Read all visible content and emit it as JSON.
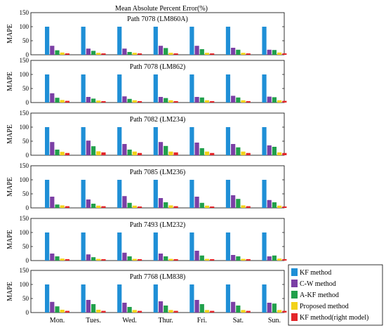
{
  "figure": {
    "title": "Mean Absolute Percent Error(%)"
  },
  "chart_data": {
    "type": "bar",
    "categories": [
      "Mon.",
      "Tues.",
      "Wed.",
      "Thur.",
      "Fri.",
      "Sat.",
      "Sun."
    ],
    "ylabel": "MAPE",
    "ylim": [
      0,
      150
    ],
    "yticks": [
      0,
      50,
      100,
      150
    ],
    "legend": {
      "placement": "bottom-right",
      "entries": [
        "KF method",
        "C-W method",
        "A-KF method",
        "Proposed method",
        "KF method(right model)"
      ],
      "colors": [
        "#1f8fd6",
        "#7b3fa5",
        "#21a04b",
        "#f2d21a",
        "#e3262a"
      ]
    },
    "panels": [
      {
        "title": "Path 7078 (LM860A)",
        "series": [
          {
            "name": "KF method",
            "values": [
              100,
              100,
              100,
              100,
              100,
              100,
              100
            ]
          },
          {
            "name": "C-W method",
            "values": [
              32,
              22,
              22,
              32,
              32,
              25,
              18
            ]
          },
          {
            "name": "A-KF method",
            "values": [
              16,
              14,
              10,
              24,
              20,
              18,
              17
            ]
          },
          {
            "name": "Proposed method",
            "values": [
              8,
              7,
              7,
              7,
              7,
              7,
              8
            ]
          },
          {
            "name": "KF method(right model)",
            "values": [
              5,
              5,
              5,
              5,
              5,
              5,
              5
            ]
          }
        ]
      },
      {
        "title": "Path 7078 (LM862)",
        "series": [
          {
            "name": "KF method",
            "values": [
              100,
              100,
              100,
              100,
              100,
              100,
              100
            ]
          },
          {
            "name": "C-W method",
            "values": [
              33,
              20,
              22,
              20,
              20,
              24,
              21
            ]
          },
          {
            "name": "A-KF method",
            "values": [
              17,
              14,
              13,
              16,
              18,
              18,
              19
            ]
          },
          {
            "name": "Proposed method",
            "values": [
              9,
              7,
              8,
              8,
              8,
              8,
              8
            ]
          },
          {
            "name": "KF method(right model)",
            "values": [
              6,
              5,
              5,
              5,
              5,
              5,
              6
            ]
          }
        ]
      },
      {
        "title": "Path 7082 (LM234)",
        "series": [
          {
            "name": "KF method",
            "values": [
              100,
              100,
              100,
              100,
              100,
              100,
              100
            ]
          },
          {
            "name": "C-W method",
            "values": [
              47,
              52,
              40,
              47,
              45,
              40,
              35
            ]
          },
          {
            "name": "A-KF method",
            "values": [
              20,
              32,
              20,
              33,
              25,
              28,
              30
            ]
          },
          {
            "name": "Proposed method",
            "values": [
              12,
              14,
              13,
              13,
              13,
              13,
              10
            ]
          },
          {
            "name": "KF method(right model)",
            "values": [
              8,
              10,
              8,
              10,
              8,
              8,
              8
            ]
          }
        ]
      },
      {
        "title": "Path 7085 (LM236)",
        "series": [
          {
            "name": "KF method",
            "values": [
              100,
              100,
              100,
              100,
              100,
              100,
              100
            ]
          },
          {
            "name": "C-W method",
            "values": [
              40,
              30,
              42,
              35,
              40,
              45,
              28
            ]
          },
          {
            "name": "A-KF method",
            "values": [
              12,
              15,
              18,
              20,
              18,
              32,
              20
            ]
          },
          {
            "name": "Proposed method",
            "values": [
              9,
              8,
              8,
              9,
              8,
              9,
              8
            ]
          },
          {
            "name": "KF method(right model)",
            "values": [
              6,
              6,
              5,
              6,
              5,
              6,
              5
            ]
          }
        ]
      },
      {
        "title": "Path 7493 (LM232)",
        "series": [
          {
            "name": "KF method",
            "values": [
              100,
              100,
              100,
              100,
              100,
              100,
              100
            ]
          },
          {
            "name": "C-W method",
            "values": [
              25,
              22,
              28,
              25,
              35,
              20,
              15
            ]
          },
          {
            "name": "A-KF method",
            "values": [
              15,
              12,
              15,
              15,
              18,
              15,
              18
            ]
          },
          {
            "name": "Proposed method",
            "values": [
              7,
              6,
              6,
              6,
              6,
              6,
              7
            ]
          },
          {
            "name": "KF method(right model)",
            "values": [
              5,
              5,
              5,
              5,
              5,
              5,
              5
            ]
          }
        ]
      },
      {
        "title": "Path 7768 (LM838)",
        "series": [
          {
            "name": "KF method",
            "values": [
              100,
              100,
              100,
              100,
              100,
              100,
              100
            ]
          },
          {
            "name": "C-W method",
            "values": [
              38,
              45,
              35,
              40,
              45,
              38,
              35
            ]
          },
          {
            "name": "A-KF method",
            "values": [
              22,
              30,
              20,
              25,
              30,
              25,
              32
            ]
          },
          {
            "name": "Proposed method",
            "values": [
              10,
              10,
              9,
              9,
              9,
              9,
              9
            ]
          },
          {
            "name": "KF method(right model)",
            "values": [
              6,
              6,
              6,
              6,
              6,
              6,
              6
            ]
          }
        ]
      }
    ]
  }
}
